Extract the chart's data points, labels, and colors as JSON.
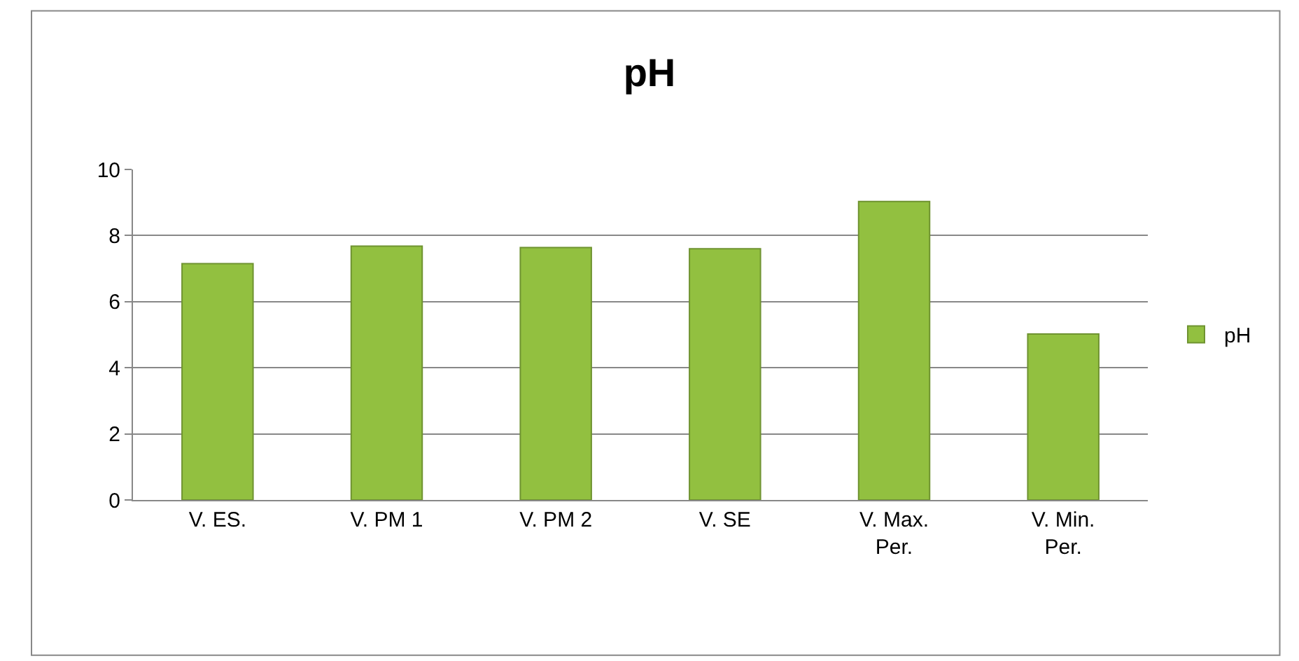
{
  "chart_data": {
    "type": "bar",
    "title": "pH",
    "categories": [
      "V. ES.",
      "V. PM 1",
      "V. PM 2",
      "V. SE",
      "V. Max. Per.",
      "V. Min. Per."
    ],
    "series": [
      {
        "name": "pH",
        "color": "#92c040",
        "values": [
          7.15,
          7.68,
          7.64,
          7.6,
          9.03,
          5.02
        ]
      }
    ],
    "ylim": [
      0,
      10
    ],
    "yticks": [
      0,
      2,
      4,
      6,
      8,
      10
    ],
    "grid": "y",
    "legend": "right"
  }
}
